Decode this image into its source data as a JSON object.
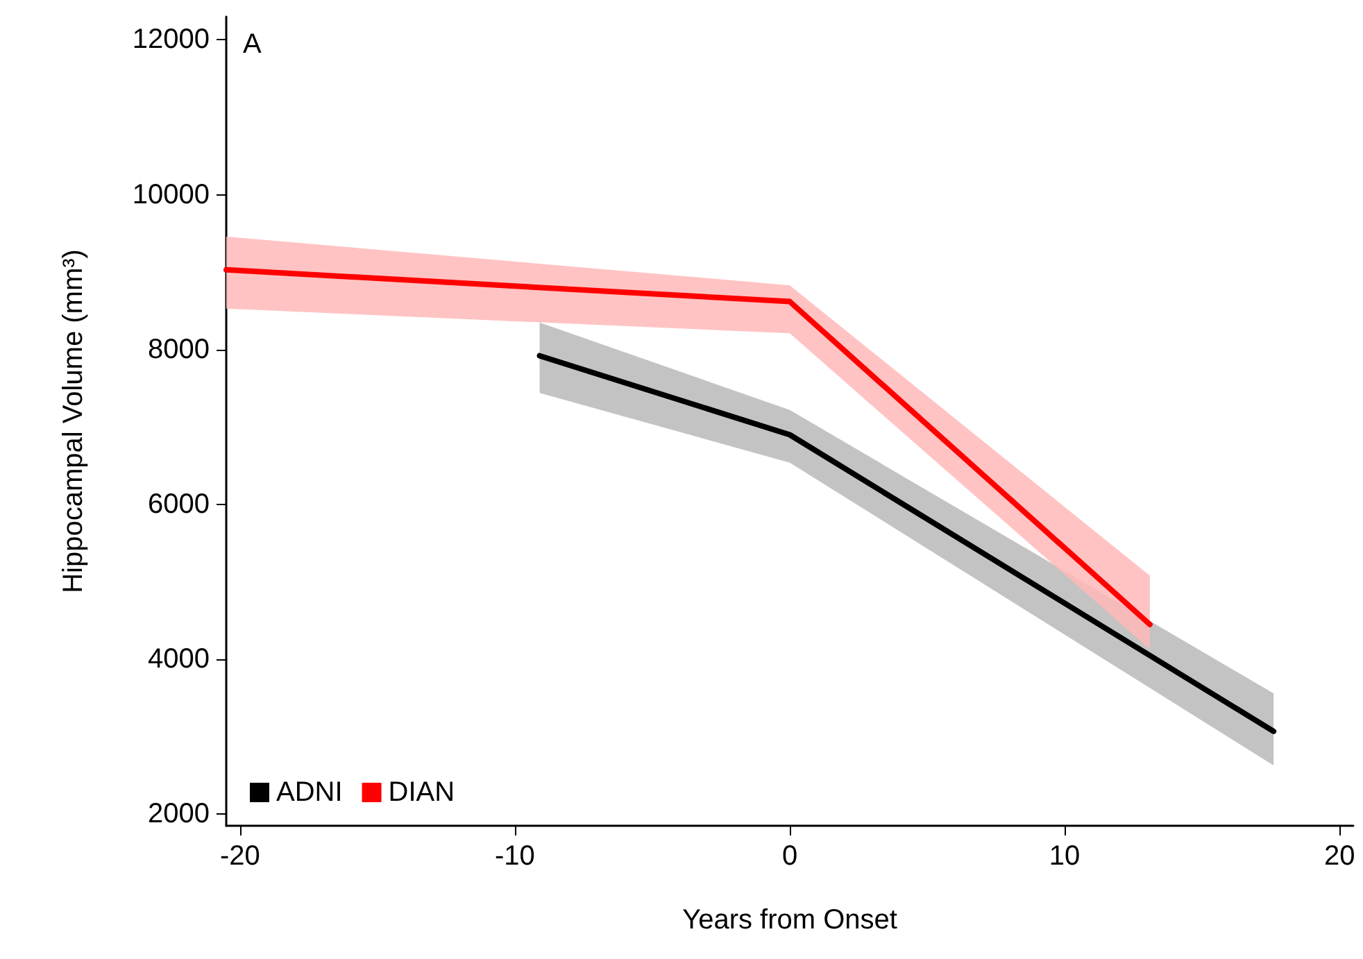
{
  "chart_data": {
    "type": "line",
    "xlabel": "Years from Onset",
    "ylabel": "Hippocampal Volume (mm³)",
    "annotations": [
      "A"
    ],
    "xlim": [
      -20.5,
      20.5
    ],
    "xticks": [
      -20,
      -10,
      0,
      10,
      20
    ],
    "ylim": [
      1850,
      12300
    ],
    "yticks": [
      2000,
      4000,
      6000,
      8000,
      10000,
      12000
    ],
    "grid": false,
    "legend": "bottom left",
    "marker": "none",
    "line_style": "solid",
    "series": [
      {
        "name": "ADNI",
        "color": "#000000",
        "x": [
          -9.1,
          0,
          17.6
        ],
        "values": [
          7920,
          6900,
          3070
        ],
        "lower": [
          7440,
          6540,
          2630
        ],
        "upper": [
          8350,
          7220,
          3560
        ]
      },
      {
        "name": "DIAN",
        "color": "#ff0000",
        "x": [
          -20.5,
          0,
          13.1
        ],
        "values": [
          9030,
          8620,
          4450
        ],
        "lower": [
          8530,
          8210,
          4130
        ],
        "upper": [
          9460,
          8830,
          5080
        ]
      }
    ]
  }
}
